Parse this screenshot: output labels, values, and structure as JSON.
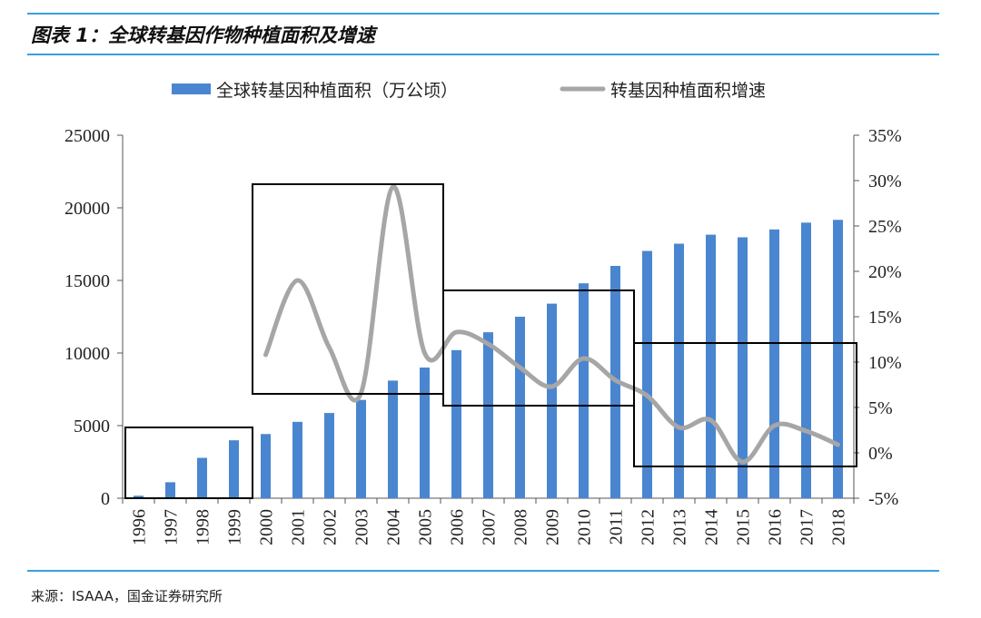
{
  "header": {
    "title": "图表 1：全球转基因作物种植面积及增速"
  },
  "footer": {
    "source": "来源：ISAAA，国金证券研究所"
  },
  "colors": {
    "bar": "#4a86d0",
    "line": "#a6a6a6",
    "rule": "#3aa0dc",
    "box": "#000000"
  },
  "chart_data": {
    "type": "bar+line",
    "categories": [
      "1996",
      "1997",
      "1998",
      "1999",
      "2000",
      "2001",
      "2002",
      "2003",
      "2004",
      "2005",
      "2006",
      "2007",
      "2008",
      "2009",
      "2010",
      "2011",
      "2012",
      "2013",
      "2014",
      "2015",
      "2016",
      "2017",
      "2018"
    ],
    "series": [
      {
        "name": "全球转基因种植面积（万公顷）",
        "type": "bar",
        "axis": "left",
        "values": [
          170,
          1100,
          2780,
          3990,
          4420,
          5260,
          5870,
          6770,
          8100,
          9000,
          10200,
          11430,
          12500,
          13400,
          14800,
          16000,
          17030,
          17530,
          18150,
          17970,
          18510,
          18980,
          19170
        ]
      },
      {
        "name": "转基因种植面积增速",
        "type": "line",
        "axis": "right",
        "values": [
          null,
          null,
          null,
          null,
          10.8,
          19.0,
          11.6,
          6.6,
          29.3,
          11.0,
          13.3,
          12.0,
          9.4,
          7.3,
          10.4,
          8.0,
          6.3,
          2.8,
          3.6,
          -1.0,
          3.0,
          2.4,
          0.9
        ]
      }
    ],
    "y_left": {
      "ticks": [
        "0",
        "5000",
        "10000",
        "15000",
        "20000",
        "25000"
      ],
      "range": [
        0,
        25000
      ]
    },
    "y_right": {
      "ticks": [
        "-5%",
        "0%",
        "5%",
        "10%",
        "15%",
        "20%",
        "25%",
        "30%",
        "35%"
      ],
      "range": [
        -5,
        35
      ]
    },
    "legend_position": "top-center",
    "highlight_boxes": [
      {
        "from": "1996",
        "to": "1999",
        "y_low": -5,
        "y_high": 2.8
      },
      {
        "from": "2000",
        "to": "2005",
        "y_low": 6.5,
        "y_high": 29.6
      },
      {
        "from": "2006",
        "to": "2011",
        "y_low": 5.2,
        "y_high": 17.9
      },
      {
        "from": "2012",
        "to": "2018",
        "y_low": -1.5,
        "y_high": 12.1
      }
    ]
  }
}
